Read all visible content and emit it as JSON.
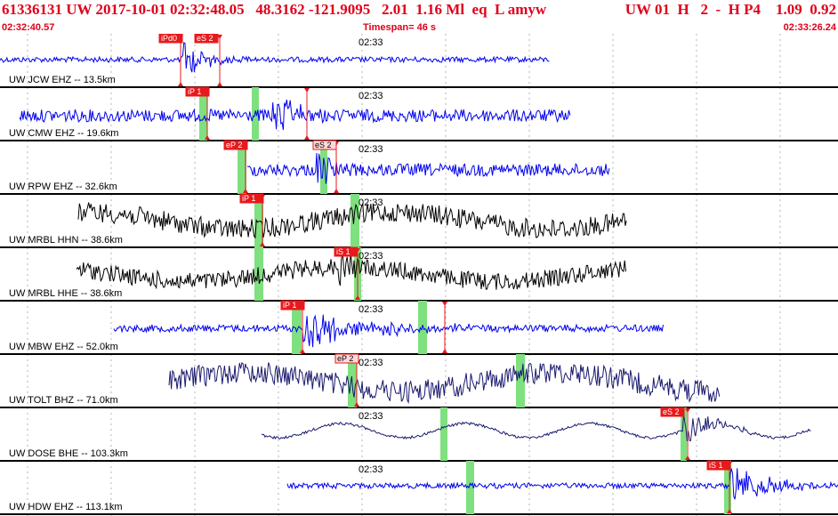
{
  "header": {
    "title": "61336131 UW 2017-10-01 02:32:48.05   48.3162 -121.9095   2.01  1.16 Ml  eq  L amyw",
    "right": "UW 01  H   2  -  H P4    1.09  0.92",
    "start_time": "02:32:40.57",
    "timespan": "Timespan=  46 s",
    "end_time": "02:33:26.24"
  },
  "time_mark": "02:33",
  "colors": {
    "accent": "#e0001a",
    "trace_blue": "#0000ee",
    "trace_black": "#000000",
    "trace_navy": "#1a1a6e",
    "pick_box": "#e8191c",
    "window": "#7fe07f"
  },
  "traces": [
    {
      "label": "UW JCW EHZ -- 13.5km",
      "color": "#0000ee",
      "picks": [
        {
          "text": "iPd0",
          "style": "solid"
        },
        {
          "text": "eS 2",
          "style": "solid"
        }
      ]
    },
    {
      "label": "UW CMW EHZ -- 19.6km",
      "color": "#0000ee",
      "picks": [
        {
          "text": "iP 1",
          "style": "solid"
        }
      ]
    },
    {
      "label": "UW RPW EHZ -- 32.6km",
      "color": "#0000ee",
      "picks": [
        {
          "text": "eP 2",
          "style": "solid"
        },
        {
          "text": "eS 2",
          "style": "outline"
        }
      ]
    },
    {
      "label": "UW MRBL HHN -- 38.6km",
      "color": "#000000",
      "picks": [
        {
          "text": "iP 1",
          "style": "solid"
        }
      ]
    },
    {
      "label": "UW MRBL HHE -- 38.6km",
      "color": "#000000",
      "picks": [
        {
          "text": "iS 1",
          "style": "solid"
        }
      ]
    },
    {
      "label": "UW MBW EHZ -- 52.0km",
      "color": "#0000ee",
      "picks": [
        {
          "text": "iP 1",
          "style": "solid"
        }
      ]
    },
    {
      "label": "UW TOLT BHZ -- 71.0km",
      "color": "#1a1a6e",
      "picks": [
        {
          "text": "eP 2",
          "style": "outline"
        }
      ]
    },
    {
      "label": "UW DOSE BHE -- 103.3km",
      "color": "#1a1a6e",
      "picks": [
        {
          "text": "eS 2",
          "style": "solid"
        }
      ]
    },
    {
      "label": "UW HDW EHZ -- 113.1km",
      "color": "#0000ee",
      "picks": [
        {
          "text": "iS 1",
          "style": "solid"
        }
      ]
    }
  ]
}
